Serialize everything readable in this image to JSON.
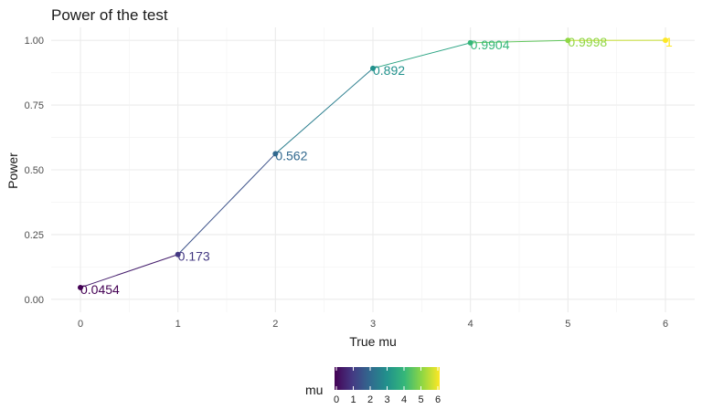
{
  "chart_data": {
    "type": "line",
    "title": "Power of the test",
    "xlabel": "True mu",
    "ylabel": "Power",
    "x": [
      0,
      1,
      2,
      3,
      4,
      5,
      6
    ],
    "y": [
      0.0454,
      0.173,
      0.562,
      0.892,
      0.9904,
      0.9998,
      1
    ],
    "point_labels": [
      "0.0454",
      "0.173",
      "0.562",
      "0.892",
      "0.9904",
      "0.9998",
      "1"
    ],
    "xticks": [
      "0",
      "1",
      "2",
      "3",
      "4",
      "5",
      "6"
    ],
    "yticks": [
      "0.00",
      "0.25",
      "0.50",
      "0.75",
      "1.00"
    ],
    "xlim": [
      -0.3,
      6.3
    ],
    "ylim": [
      -0.05,
      1.05
    ],
    "grid": true,
    "legend": {
      "title": "mu",
      "placement": "bottom",
      "type": "colorbar",
      "ticks": [
        "0",
        "1",
        "2",
        "3",
        "4",
        "5",
        "6"
      ],
      "palette": [
        "#440154",
        "#443983",
        "#31688e",
        "#21918c",
        "#35b779",
        "#90d743",
        "#fde725"
      ]
    }
  }
}
